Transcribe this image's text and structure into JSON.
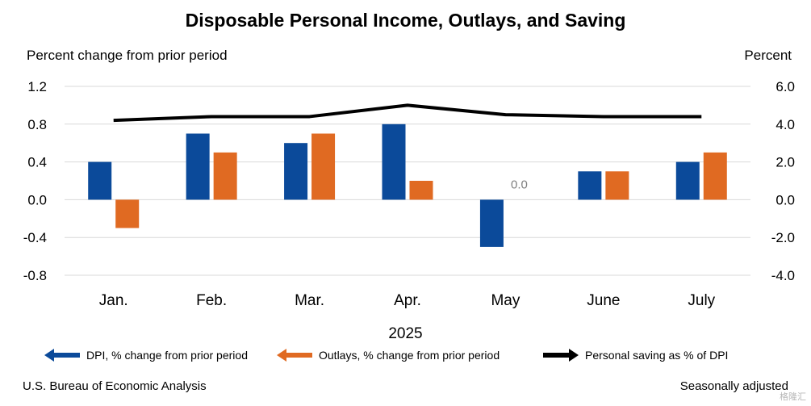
{
  "title": "Disposable Personal Income, Outlays, and Saving",
  "left_axis_label": "Percent change from prior period",
  "right_axis_label": "Percent",
  "year_label": "2025",
  "source": "U.S. Bureau of Economic Analysis",
  "seasonal": "Seasonally adjusted",
  "watermark": "格隆汇",
  "legend": [
    {
      "label": "DPI, % change from prior period",
      "color": "#0b4a9a",
      "marker": "left-arrow"
    },
    {
      "label": "Outlays, % change from prior period",
      "color": "#e06a22",
      "marker": "left-arrow"
    },
    {
      "label": "Personal saving as % of DPI",
      "color": "#000000",
      "marker": "right-arrow"
    }
  ],
  "chart_data": {
    "type": "bar",
    "categories": [
      "Jan.",
      "Feb.",
      "Mar.",
      "Apr.",
      "May",
      "June",
      "July"
    ],
    "series": [
      {
        "name": "DPI, % change from prior period",
        "axis": "left",
        "type": "bar",
        "color": "#0b4a9a",
        "values": [
          0.4,
          0.7,
          0.6,
          0.8,
          -0.5,
          0.3,
          0.4
        ]
      },
      {
        "name": "Outlays, % change from prior period",
        "axis": "left",
        "type": "bar",
        "color": "#e06a22",
        "values": [
          -0.3,
          0.5,
          0.7,
          0.2,
          0.0,
          0.3,
          0.5
        ]
      },
      {
        "name": "Personal saving as % of DPI",
        "axis": "right",
        "type": "line",
        "color": "#000000",
        "values": [
          4.2,
          4.4,
          4.4,
          5.0,
          4.5,
          4.4,
          4.4
        ]
      }
    ],
    "y_left": {
      "min": -0.8,
      "max": 1.2,
      "ticks": [
        "1.2",
        "0.8",
        "0.4",
        "0.0",
        "-0.4",
        "-0.8"
      ]
    },
    "y_right": {
      "min": -4.0,
      "max": 6.0,
      "ticks": [
        "6.0",
        "4.0",
        "2.0",
        "0.0",
        "-2.0",
        "-4.0"
      ]
    },
    "data_labels": [
      {
        "category": "May",
        "series": "Outlays, % change from prior period",
        "text": "0.0"
      }
    ],
    "grid": true
  }
}
